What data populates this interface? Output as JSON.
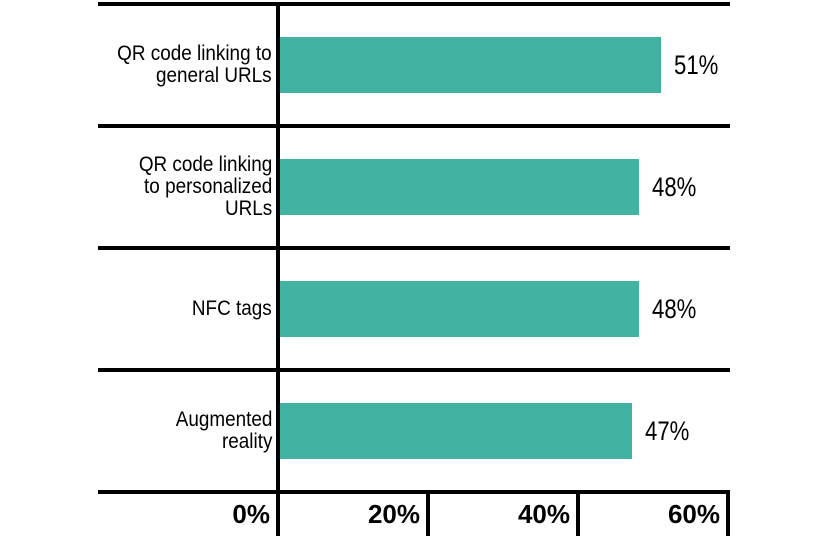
{
  "chart_data": {
    "type": "bar",
    "orientation": "horizontal",
    "title": "",
    "categories": [
      "QR code linking to general URLs",
      "QR code linking to personalized URLs",
      "NFC tags",
      "Augmented reality"
    ],
    "categories_display": [
      "QR code linking to\ngeneral URLs",
      "QR code linking\nto personalized\nURLs",
      "NFC tags",
      "Augmented\nreality"
    ],
    "values": [
      51,
      48,
      48,
      47
    ],
    "value_labels": [
      "51%",
      "48%",
      "48%",
      "47%"
    ],
    "x_ticks": [
      "0%",
      "20%",
      "40%",
      "60%"
    ],
    "xlim": [
      0,
      60
    ],
    "xlabel": "",
    "ylabel": "",
    "legend": "none",
    "grid": "horizontal row separator lines",
    "bar_color": "#42b3a2",
    "axis_color": "#000000",
    "text_color": "#000000"
  }
}
